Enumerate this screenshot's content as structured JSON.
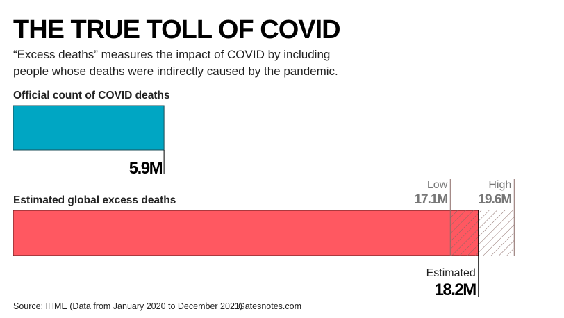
{
  "chart_data": {
    "type": "bar",
    "title": "THE TRUE TOLL OF COVID",
    "subtitle": [
      "“Excess deaths” measures the impact of COVID by including",
      "people whose deaths were indirectly caused by the pandemic."
    ],
    "bars": [
      {
        "label": "Official count of COVID deaths",
        "value": 5.9,
        "value_label": "5.9M",
        "color": "#00a6c3"
      },
      {
        "label": "Estimated global excess deaths",
        "value": 18.2,
        "value_label": "18.2M",
        "value_caption": "Estimated",
        "color": "#ff4f58",
        "low": 17.1,
        "low_label": "17.1M",
        "low_caption": "Low",
        "high": 19.6,
        "high_label": "19.6M",
        "high_caption": "High"
      }
    ],
    "unit": "million deaths",
    "source": "Source: IHME (Data from January 2020 to December 2021)",
    "credit": "Gatesnotes.com"
  }
}
